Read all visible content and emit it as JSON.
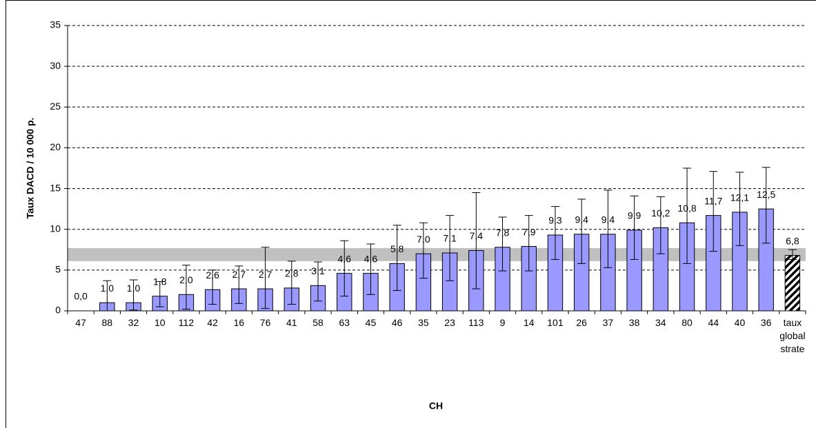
{
  "chart_data": {
    "type": "bar",
    "x_label": "CH",
    "y_label": "Taux DACD / 10 000 p.",
    "categories": [
      "47",
      "88",
      "32",
      "10",
      "112",
      "42",
      "16",
      "76",
      "41",
      "58",
      "63",
      "45",
      "46",
      "35",
      "23",
      "113",
      "9",
      "14",
      "101",
      "26",
      "37",
      "38",
      "34",
      "80",
      "44",
      "40",
      "36",
      "taux global strate"
    ],
    "values": [
      0.0,
      1.0,
      1.0,
      1.8,
      2.0,
      2.6,
      2.7,
      2.7,
      2.8,
      3.1,
      4.6,
      4.6,
      5.8,
      7.0,
      7.1,
      7.4,
      7.8,
      7.9,
      9.3,
      9.4,
      9.4,
      9.9,
      10.2,
      10.8,
      11.7,
      12.1,
      12.5,
      6.8
    ],
    "value_labels": [
      "0,0",
      "1,0",
      "1,0",
      "1,8",
      "2,0",
      "2,6",
      "2,7",
      "2,7",
      "2,8",
      "3,1",
      "4,6",
      "4,6",
      "5,8",
      "7,0",
      "7,1",
      "7,4",
      "7,8",
      "7,9",
      "9,3",
      "9,4",
      "9,4",
      "9,9",
      "10,2",
      "10,8",
      "11,7",
      "12,1",
      "12,5",
      "6,8"
    ],
    "ci_low": [
      null,
      0.0,
      0.1,
      0.5,
      0.2,
      0.8,
      0.9,
      0.3,
      0.8,
      1.2,
      1.8,
      2.0,
      2.5,
      4.0,
      3.7,
      2.7,
      4.9,
      4.9,
      6.3,
      5.8,
      5.3,
      6.3,
      7.0,
      5.8,
      7.3,
      8.0,
      8.3,
      6.3
    ],
    "ci_high": [
      null,
      3.7,
      3.8,
      3.6,
      5.6,
      5.0,
      5.5,
      7.8,
      6.1,
      6.0,
      8.6,
      8.2,
      10.5,
      10.8,
      11.7,
      14.5,
      11.5,
      11.7,
      12.8,
      13.7,
      14.8,
      14.1,
      14.0,
      17.5,
      17.1,
      17.0,
      17.6,
      7.5
    ],
    "color": "#9999ff",
    "hatch_last": true,
    "reference_band": [
      6.1,
      7.7
    ],
    "band_color": "#c0c0c0",
    "ylim": [
      0,
      35
    ],
    "yticks": [
      0,
      5,
      10,
      15,
      20,
      25,
      30,
      35
    ],
    "grid": true
  }
}
